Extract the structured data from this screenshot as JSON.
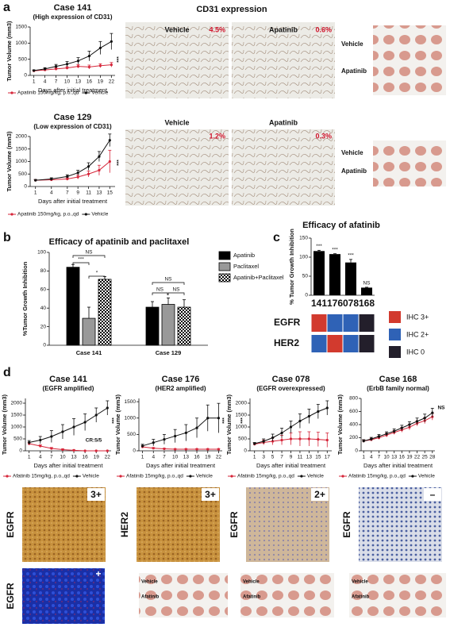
{
  "panel_letters": [
    "a",
    "b",
    "c",
    "d"
  ],
  "chart_data": [
    {
      "type": "line",
      "title": "Case 141",
      "subtitle": "(High expression of CD31)",
      "ylabel": "Tumor Volume (mm3)",
      "xlabel": "Days after initial treatment",
      "x": [
        1,
        4,
        7,
        10,
        13,
        16,
        19,
        22
      ],
      "xlim": [
        0,
        23
      ],
      "ylim": [
        0,
        1500
      ],
      "yticks": [
        0,
        500,
        1000,
        1500
      ],
      "series": [
        {
          "name": "Apatinib 150mg/kg, p.o.,qd",
          "color": "#d6263a",
          "values": [
            140,
            170,
            200,
            230,
            280,
            260,
            300,
            330
          ],
          "errors": [
            20,
            30,
            40,
            40,
            50,
            60,
            60,
            70
          ]
        },
        {
          "name": "Vehicle",
          "color": "#111111",
          "values": [
            150,
            200,
            280,
            350,
            450,
            600,
            850,
            1050
          ],
          "errors": [
            20,
            40,
            60,
            80,
            100,
            150,
            200,
            250
          ]
        }
      ],
      "annotations": [
        "***"
      ]
    },
    {
      "type": "line",
      "title": "Case 129",
      "subtitle": "(Low expression of CD31)",
      "ylabel": "Tumor Volume (mm3)",
      "xlabel": "Days after initial treatment",
      "x": [
        1,
        4,
        7,
        9,
        11,
        13,
        15
      ],
      "xlim": [
        0,
        16
      ],
      "ylim": [
        0,
        2000
      ],
      "yticks": [
        0,
        500,
        1000,
        1500,
        2000
      ],
      "series": [
        {
          "name": "Apatinib 150mg/kg, p.o.,qd",
          "color": "#d6263a",
          "values": [
            250,
            270,
            300,
            380,
            500,
            650,
            1000
          ],
          "errors": [
            30,
            40,
            50,
            80,
            120,
            200,
            450
          ]
        },
        {
          "name": "Vehicle",
          "color": "#111111",
          "values": [
            250,
            300,
            400,
            550,
            800,
            1200,
            1850
          ],
          "errors": [
            30,
            50,
            70,
            100,
            150,
            200,
            250
          ]
        }
      ],
      "annotations": [
        "***"
      ]
    },
    {
      "type": "groupbar",
      "title": "Efficacy of apatinib and paclitaxel",
      "ylabel": "%Tumor Growth Inhibition",
      "categories": [
        "Case 141",
        "Case 129"
      ],
      "ylim": [
        0,
        100
      ],
      "yticks": [
        0,
        20,
        40,
        60,
        80,
        100
      ],
      "series": [
        {
          "name": "Apatinib",
          "color": "#000000",
          "values": [
            84,
            41
          ],
          "errors": [
            3,
            6
          ]
        },
        {
          "name": "Paclitaxel",
          "color": "#999999",
          "values": [
            29,
            44
          ],
          "errors": [
            12,
            7
          ]
        },
        {
          "name": "Apatinib+Paclitaxel",
          "color": "#000000",
          "pattern": "checker",
          "values": [
            71,
            41
          ],
          "errors": [
            3,
            8
          ]
        }
      ],
      "significance": [
        "NS",
        "***",
        "*",
        "NS",
        "NS",
        "NS"
      ]
    },
    {
      "type": "bar",
      "title": "Efficacy of afatinib",
      "ylabel": "% Tumor Growth Inhibition",
      "categories": [
        "141",
        "176",
        "078",
        "168"
      ],
      "values": [
        116,
        108,
        86,
        20
      ],
      "errors": [
        2,
        1,
        8,
        1
      ],
      "color": "#000000",
      "ylim": [
        0,
        150
      ],
      "yticks": [
        0,
        50,
        100,
        150
      ],
      "significance": [
        "***",
        "***",
        "***",
        "NS"
      ]
    },
    {
      "type": "line",
      "title": "Case 141",
      "subtitle": "(EGFR amplified)",
      "ylabel": "Tumor Volume (mm3)",
      "xlabel": "Days after initial treatment",
      "x": [
        1,
        4,
        7,
        10,
        13,
        16,
        19,
        22
      ],
      "xlim": [
        0,
        23
      ],
      "ylim": [
        0,
        2200
      ],
      "yticks": [
        0,
        500,
        1000,
        1500,
        2000
      ],
      "series": [
        {
          "name": "Afatinib 15mg/kg, p.o.,qd",
          "color": "#d6263a",
          "values": [
            300,
            200,
            100,
            50,
            20,
            0,
            0,
            0
          ],
          "errors": [
            60,
            50,
            40,
            30,
            20,
            0,
            0,
            0
          ]
        },
        {
          "name": "Vehicle",
          "color": "#111111",
          "values": [
            350,
            450,
            600,
            800,
            1000,
            1200,
            1500,
            1800
          ],
          "errors": [
            80,
            150,
            250,
            300,
            350,
            350,
            300,
            300
          ]
        }
      ],
      "annotations": [
        "***",
        "CR:5/5"
      ]
    },
    {
      "type": "line",
      "title": "Case 176",
      "subtitle": "(HER2 amplified)",
      "ylabel": "Tumor Volume (mm3)",
      "xlabel": "Days after initial treatment",
      "x": [
        1,
        4,
        7,
        10,
        13,
        16,
        19,
        22
      ],
      "xlim": [
        0,
        23
      ],
      "ylim": [
        0,
        1600
      ],
      "yticks": [
        0,
        500,
        1000,
        1500
      ],
      "series": [
        {
          "name": "Afatinib 15mg/kg, p.o.,qd",
          "color": "#d6263a",
          "values": [
            120,
            80,
            60,
            50,
            50,
            50,
            50,
            50
          ],
          "errors": [
            30,
            20,
            15,
            10,
            10,
            10,
            10,
            10
          ]
        },
        {
          "name": "Vehicle",
          "color": "#111111",
          "values": [
            150,
            250,
            350,
            450,
            550,
            700,
            1000,
            1000
          ],
          "errors": [
            50,
            100,
            150,
            200,
            250,
            300,
            400,
            450
          ]
        }
      ],
      "annotations": [
        "***"
      ]
    },
    {
      "type": "line",
      "title": "Case 078",
      "subtitle": "(EGFR overexpressed)",
      "ylabel": "Tumor Volume (mm3)",
      "xlabel": "Days after initial treatment",
      "x": [
        1,
        3,
        5,
        7,
        9,
        11,
        13,
        15,
        17
      ],
      "xlim": [
        0,
        18
      ],
      "ylim": [
        0,
        2200
      ],
      "yticks": [
        0,
        500,
        1000,
        1500,
        2000
      ],
      "series": [
        {
          "name": "Afatinib 15mg/kg, p.o.,qd",
          "color": "#d6263a",
          "values": [
            280,
            350,
            400,
            450,
            500,
            500,
            500,
            480,
            450
          ],
          "errors": [
            50,
            100,
            150,
            200,
            250,
            300,
            300,
            300,
            300
          ]
        },
        {
          "name": "Vehicle",
          "color": "#111111",
          "values": [
            300,
            400,
            550,
            750,
            1000,
            1250,
            1450,
            1650,
            1800
          ],
          "errors": [
            50,
            100,
            150,
            200,
            250,
            300,
            300,
            300,
            300
          ]
        }
      ],
      "annotations": [
        "***"
      ]
    },
    {
      "type": "line",
      "title": "Case 168",
      "subtitle": "(ErbB family normal)",
      "ylabel": "Tumor Volume (mm3)",
      "xlabel": "Days after initial treatment",
      "x": [
        1,
        4,
        7,
        10,
        13,
        16,
        19,
        22,
        25,
        28
      ],
      "xlim": [
        0,
        29
      ],
      "ylim": [
        0,
        800
      ],
      "yticks": [
        0,
        200,
        400,
        600,
        800
      ],
      "series": [
        {
          "name": "Afatinib 15mg/kg, p.o.,qd",
          "color": "#d6263a",
          "values": [
            150,
            170,
            200,
            240,
            280,
            320,
            360,
            420,
            460,
            520
          ],
          "errors": [
            20,
            20,
            25,
            30,
            30,
            35,
            40,
            40,
            45,
            50
          ]
        },
        {
          "name": "Vehicle",
          "color": "#111111",
          "values": [
            150,
            180,
            220,
            260,
            300,
            350,
            400,
            450,
            500,
            580
          ],
          "errors": [
            20,
            25,
            30,
            30,
            35,
            40,
            45,
            50,
            60,
            70
          ]
        }
      ],
      "annotations": [
        "NS"
      ]
    }
  ],
  "ihc": {
    "rows": [
      "EGFR",
      "HER2"
    ],
    "cells": [
      [
        0,
        1,
        1,
        2
      ],
      [
        1,
        0,
        1,
        2
      ]
    ],
    "levels": [
      {
        "label": "IHC 3+",
        "color": "#d23a2e"
      },
      {
        "label": "IHC 2+",
        "color": "#2f62b6"
      },
      {
        "label": "IHC 0",
        "color": "#231f2b"
      }
    ]
  },
  "cd31": {
    "title": "CD31 expression",
    "rows": [
      {
        "headers": [
          "Vehicle",
          "Apatinib"
        ],
        "pct": [
          "4.5%",
          "0.6%"
        ]
      },
      {
        "headers": [
          "Vehicle",
          "Apatinib"
        ],
        "pct": [
          "1.2%",
          "0.3%"
        ]
      }
    ]
  },
  "tumor_photos_a": [
    [
      "Vehicle",
      "Apatinib"
    ],
    [
      "Vehicle",
      "Apatinib"
    ]
  ],
  "ihc_images": [
    {
      "marker": "EGFR",
      "score": "3+"
    },
    {
      "marker": "HER2",
      "score": "3+"
    },
    {
      "marker": "EGFR",
      "score": "2+"
    },
    {
      "marker": "EGFR",
      "score": "–"
    }
  ],
  "fish": {
    "marker": "EGFR",
    "score": "+"
  },
  "tumor_photos_d": [
    [
      "Vehicle",
      "Afatinib"
    ],
    [
      "Vehicle",
      "Afatinib"
    ],
    [
      "Vehicle",
      "Afatinib"
    ]
  ]
}
